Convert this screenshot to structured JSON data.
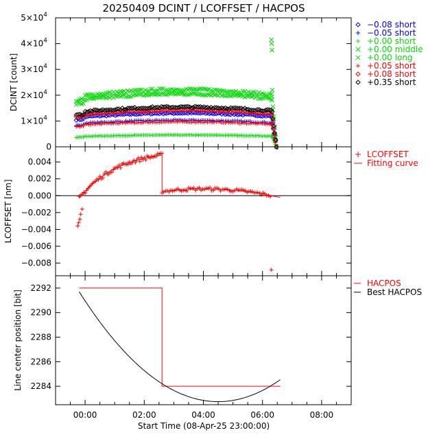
{
  "chart_data": [
    {
      "type": "scatter",
      "title": "20250409 DCINT / LCOFFSET / HACPOS",
      "xlabel": "",
      "ylabel": "DCINT [count]",
      "xlim": [
        -1.0,
        9.0
      ],
      "ylim": [
        0,
        50000
      ],
      "yticks": [
        {
          "v": 0,
          "m": "0",
          "e": ""
        },
        {
          "v": 10000,
          "m": "1×10",
          "e": "4"
        },
        {
          "v": 20000,
          "m": "2×10",
          "e": "4"
        },
        {
          "v": 30000,
          "m": "3×10",
          "e": "4"
        },
        {
          "v": 40000,
          "m": "4×10",
          "e": "4"
        },
        {
          "v": 50000,
          "m": "5×10",
          "e": "4"
        }
      ],
      "series": [
        {
          "name": "−0.08 short",
          "symbol": "diamond",
          "color": "#0000ff",
          "level": 11500,
          "x0": -0.3,
          "x1": 6.3,
          "spike": null
        },
        {
          "name": "−0.05 short",
          "symbol": "plus",
          "color": "#0000ff",
          "level": 9000,
          "x0": -0.3,
          "x1": 6.3,
          "spike": null
        },
        {
          "name": "+0.00 short",
          "symbol": "plus",
          "color": "#00dd00",
          "level": 4000,
          "x0": -0.3,
          "x1": 6.3,
          "spike": null
        },
        {
          "name": "+0.00 middle",
          "symbol": "cross",
          "color": "#00dd00",
          "level": 19500,
          "x0": -0.3,
          "x1": 6.3,
          "spike": null
        },
        {
          "name": "+0.00 long",
          "symbol": "cross",
          "color": "#00dd00",
          "level": 18000,
          "x0": -0.3,
          "x1": 6.3,
          "spike": [
            41500,
            40000,
            37500,
            22000
          ]
        },
        {
          "name": "+0.05 short",
          "symbol": "plus",
          "color": "#ff0000",
          "level": 8500,
          "x0": -0.3,
          "x1": 6.3,
          "spike": null
        },
        {
          "name": "+0.08 short",
          "symbol": "diamond",
          "color": "#ff0000",
          "level": 12500,
          "x0": -0.3,
          "x1": 6.3,
          "spike": null
        },
        {
          "name": "+0.35 short",
          "symbol": "diamond",
          "color": "#000000",
          "level": 13500,
          "x0": -0.3,
          "x1": 6.3,
          "spike": null
        }
      ]
    },
    {
      "type": "scatter",
      "xlabel": "",
      "ylabel": "LCOFFSET [nm]",
      "xlim": [
        -1.0,
        9.0
      ],
      "ylim": [
        -0.0095,
        0.0058
      ],
      "yticks": [
        -0.008,
        -0.006,
        -0.004,
        -0.002,
        0.0,
        0.002,
        0.004
      ],
      "ytick_labels": [
        "−0.008",
        "−0.006",
        "−0.004",
        "−0.002",
        "0.000",
        "0.002",
        "0.004"
      ],
      "zero_line": 0.0,
      "jump_time": 2.6,
      "outlier": {
        "x": 6.3,
        "y": -0.0088
      },
      "series": [
        {
          "name": "LCOFFSET",
          "symbol": "plus",
          "color": "#ff0000"
        },
        {
          "name": "Fitting curve",
          "symbol": "line",
          "color": "#ff0000"
        }
      ]
    },
    {
      "type": "line",
      "xlabel": "Start Time (08-Apr-25 23:00:00)",
      "ylabel": "Line center position [bit]",
      "xlim": [
        -1.0,
        9.0
      ],
      "ylim": [
        2282.5,
        2293.0
      ],
      "yticks": [
        2284,
        2286,
        2288,
        2290,
        2292
      ],
      "xticks": [
        0,
        2,
        4,
        6,
        8
      ],
      "xtick_labels": [
        "00:00",
        "02:00",
        "04:00",
        "06:00",
        "08:00"
      ],
      "series": [
        {
          "name": "HACPOS",
          "color": "#ff0000",
          "x": [
            -0.2,
            2.6,
            2.6,
            6.6
          ],
          "y": [
            2292,
            2292,
            2284,
            2284
          ]
        },
        {
          "name": "Best HACPOS",
          "color": "#000000",
          "vertex_x": 4.5,
          "vertex_y": 2282.75,
          "x_range": [
            -0.2,
            6.6
          ],
          "curvature": 0.405
        }
      ]
    }
  ]
}
